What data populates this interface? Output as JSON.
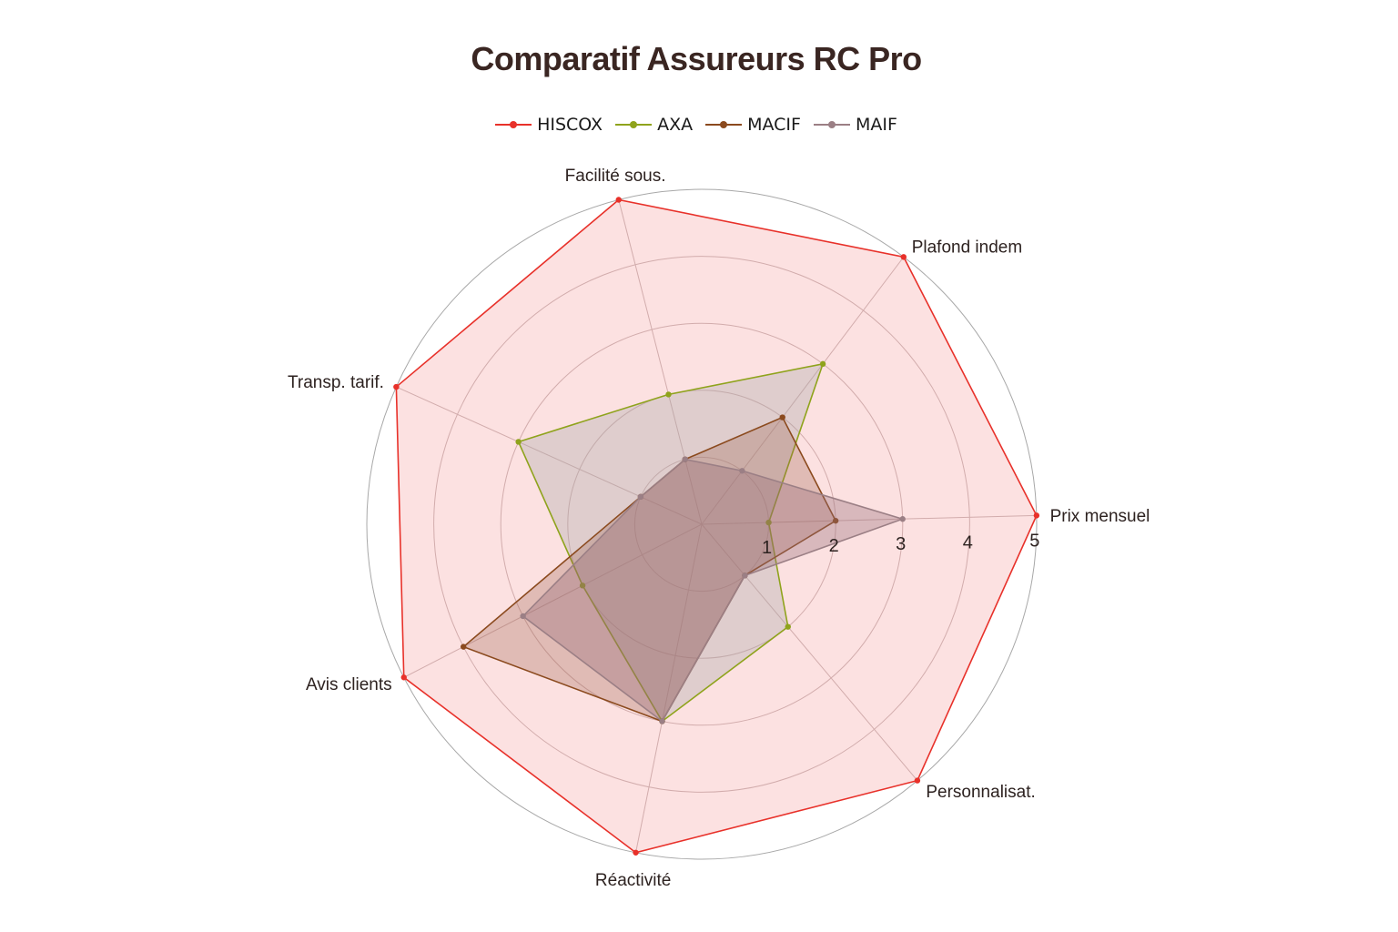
{
  "title": "Comparatif Assureurs RC Pro",
  "legend": [
    {
      "name": "HISCOX",
      "color": "#e8312a"
    },
    {
      "name": "AXA",
      "color": "#8fa31c"
    },
    {
      "name": "MACIF",
      "color": "#8b4a1e"
    },
    {
      "name": "MAIF",
      "color": "#9b7f85"
    }
  ],
  "chart_data": {
    "type": "radar",
    "title": "Comparatif Assureurs RC Pro",
    "categories": [
      "Prix mensuel",
      "Plafond indem",
      "Facilité sous.",
      "Transp. tarif.",
      "Avis clients",
      "Réactivité",
      "Personnalisat."
    ],
    "series": [
      {
        "name": "HISCOX",
        "color": "#e8312a",
        "fill": "rgba(240,120,120,0.22)",
        "values": [
          5,
          5,
          5,
          5,
          5,
          5,
          5
        ]
      },
      {
        "name": "AXA",
        "color": "#8fa31c",
        "fill": "rgba(170,170,170,0.35)",
        "values": [
          1,
          3,
          2,
          3,
          2,
          3,
          2
        ]
      },
      {
        "name": "MACIF",
        "color": "#8b4a1e",
        "fill": "rgba(160,100,80,0.30)",
        "values": [
          2,
          2,
          1,
          1,
          4,
          3,
          1
        ]
      },
      {
        "name": "MAIF",
        "color": "#9b7f85",
        "fill": "rgba(150,110,120,0.35)",
        "values": [
          3,
          1,
          1,
          1,
          3,
          3,
          1
        ]
      }
    ],
    "radial_ticks": [
      "1",
      "2",
      "3",
      "4",
      "5"
    ],
    "rlim": [
      0,
      5
    ],
    "grid": true,
    "legend_position": "top"
  }
}
